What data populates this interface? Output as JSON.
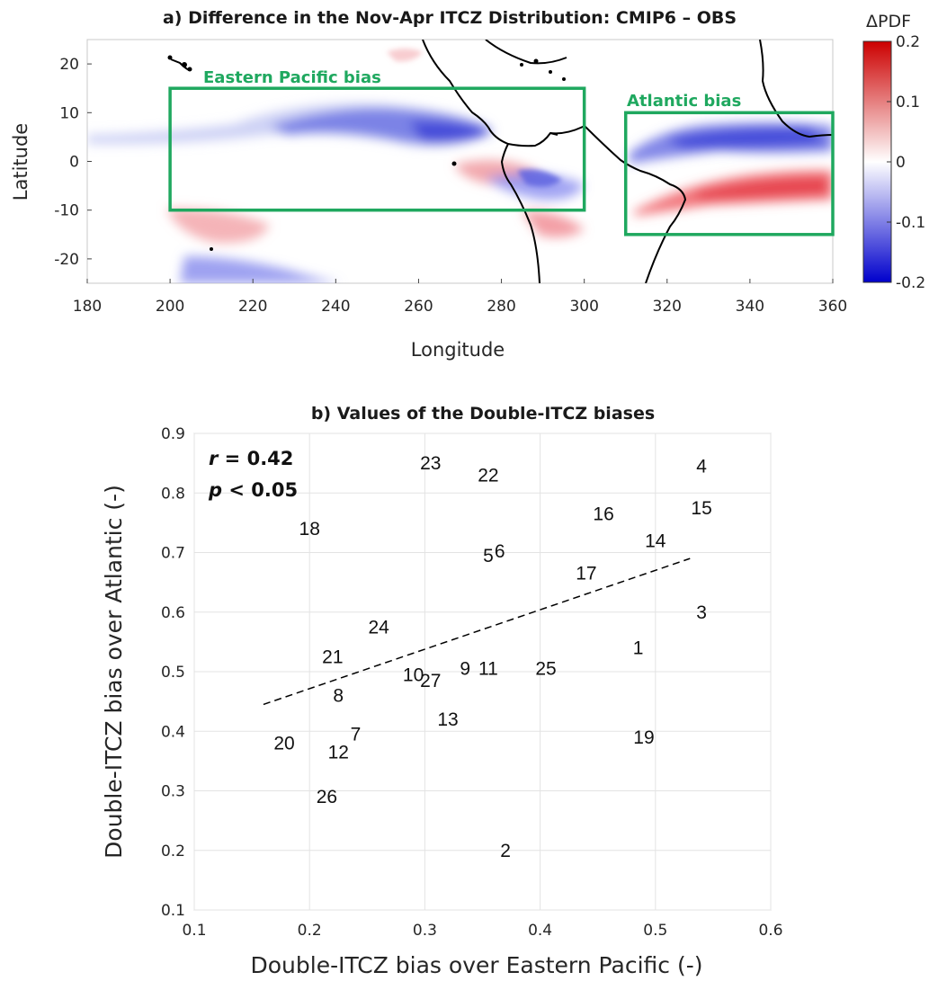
{
  "map_panel": {
    "title": "a) Difference in the Nov-Apr ITCZ Distribution: CMIP6 – OBS",
    "xlabel": "Longitude",
    "ylabel": "Latitude",
    "xticks": [
      "180",
      "200",
      "220",
      "240",
      "260",
      "280",
      "300",
      "320",
      "340",
      "360"
    ],
    "yticks": [
      "20",
      "10",
      "0",
      "-10",
      "-20"
    ],
    "colorbar": {
      "label": "ΔPDF",
      "ticks": [
        "0.2",
        "0.1",
        "0",
        "-0.1",
        "-0.2"
      ],
      "colors": [
        "#1a1acc",
        "#ffffff",
        "#cc1a1a"
      ]
    },
    "boxes": [
      {
        "label": "Eastern Pacific bias",
        "lon": [
          200,
          300
        ],
        "lat": [
          -10,
          15
        ],
        "color": "#1fa85f"
      },
      {
        "label": "Atlantic bias",
        "lon": [
          310,
          360
        ],
        "lat": [
          -15,
          10
        ],
        "color": "#1fa85f"
      }
    ]
  },
  "chart_data": {
    "type": "scatter",
    "title": "b) Values of the Double-ITCZ biases",
    "xlabel": "Double-ITCZ bias over Eastern Pacific (-)",
    "ylabel": "Double-ITCZ bias over Atlantic (-)",
    "xlim": [
      0.1,
      0.6
    ],
    "ylim": [
      0.1,
      0.9
    ],
    "xticks": [
      "0.1",
      "0.2",
      "0.3",
      "0.4",
      "0.5",
      "0.6"
    ],
    "yticks": [
      "0.9",
      "0.8",
      "0.7",
      "0.6",
      "0.5",
      "0.4",
      "0.3",
      "0.2",
      "0.1"
    ],
    "grid": true,
    "annotation": {
      "r_label": "r",
      "r_value": " = 0.42",
      "p_label": "p",
      "p_value": " < 0.05"
    },
    "trend_line": {
      "x": [
        0.16,
        0.53
      ],
      "y": [
        0.445,
        0.69
      ],
      "style": "dashed"
    },
    "points": [
      {
        "label": "1",
        "x": 0.485,
        "y": 0.54
      },
      {
        "label": "2",
        "x": 0.37,
        "y": 0.2
      },
      {
        "label": "3",
        "x": 0.54,
        "y": 0.6
      },
      {
        "label": "4",
        "x": 0.54,
        "y": 0.845
      },
      {
        "label": "5",
        "x": 0.355,
        "y": 0.695
      },
      {
        "label": "6",
        "x": 0.365,
        "y": 0.702
      },
      {
        "label": "7",
        "x": 0.24,
        "y": 0.395
      },
      {
        "label": "8",
        "x": 0.225,
        "y": 0.46
      },
      {
        "label": "9",
        "x": 0.335,
        "y": 0.505
      },
      {
        "label": "10",
        "x": 0.29,
        "y": 0.495
      },
      {
        "label": "11",
        "x": 0.355,
        "y": 0.505
      },
      {
        "label": "12",
        "x": 0.225,
        "y": 0.365
      },
      {
        "label": "13",
        "x": 0.32,
        "y": 0.42
      },
      {
        "label": "14",
        "x": 0.5,
        "y": 0.72
      },
      {
        "label": "15",
        "x": 0.54,
        "y": 0.775
      },
      {
        "label": "16",
        "x": 0.455,
        "y": 0.765
      },
      {
        "label": "17",
        "x": 0.44,
        "y": 0.665
      },
      {
        "label": "18",
        "x": 0.2,
        "y": 0.74
      },
      {
        "label": "19",
        "x": 0.49,
        "y": 0.39
      },
      {
        "label": "20",
        "x": 0.178,
        "y": 0.38
      },
      {
        "label": "21",
        "x": 0.22,
        "y": 0.525
      },
      {
        "label": "22",
        "x": 0.355,
        "y": 0.83
      },
      {
        "label": "23",
        "x": 0.305,
        "y": 0.85
      },
      {
        "label": "24",
        "x": 0.26,
        "y": 0.575
      },
      {
        "label": "25",
        "x": 0.405,
        "y": 0.505
      },
      {
        "label": "26",
        "x": 0.215,
        "y": 0.29
      },
      {
        "label": "27",
        "x": 0.305,
        "y": 0.485
      }
    ]
  }
}
